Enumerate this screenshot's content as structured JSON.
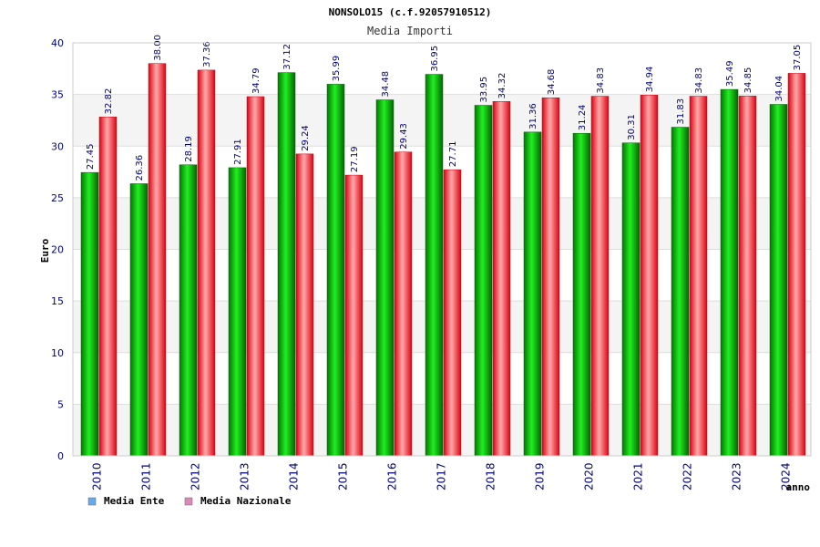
{
  "chart_data": {
    "type": "bar",
    "title": "NONSOLO15 (c.f.92057910512)",
    "subtitle": "Media Importi",
    "ylabel": "Euro",
    "xlabel": "anno",
    "ylim": [
      0,
      40
    ],
    "yticks": [
      0,
      5,
      10,
      15,
      20,
      25,
      30,
      35,
      40
    ],
    "grid": true,
    "legend_position": "bottom-left",
    "categories": [
      "2010",
      "2011",
      "2012",
      "2013",
      "2014",
      "2015",
      "2016",
      "2017",
      "2018",
      "2019",
      "2020",
      "2021",
      "2022",
      "2023",
      "2024"
    ],
    "series": [
      {
        "name": "Media Ente",
        "bar_color": "#00aa00",
        "legend_color": "#66aaee",
        "values": [
          27.45,
          26.36,
          28.19,
          27.91,
          37.12,
          35.99,
          34.48,
          36.95,
          33.95,
          31.36,
          31.24,
          30.31,
          31.83,
          35.49,
          34.04
        ],
        "labels": [
          "27.45",
          "26.36",
          "28.19",
          "27.91",
          "37.12",
          "35.99",
          "34.48",
          "36.95",
          "33.95",
          "31.36",
          "31.24",
          "30.31",
          "31.83",
          "35.49",
          "34.04"
        ]
      },
      {
        "name": "Media Nazionale",
        "bar_color": "#ee2233",
        "legend_color": "#dd88bb",
        "values": [
          32.82,
          38.0,
          37.36,
          34.79,
          29.24,
          27.19,
          29.43,
          27.71,
          34.32,
          34.68,
          34.83,
          34.94,
          34.83,
          34.85,
          37.05
        ],
        "labels": [
          "32.82",
          "38.00",
          "37.36",
          "34.79",
          "29.24",
          "27.19",
          "29.43",
          "27.71",
          "34.32",
          "34.68",
          "34.83",
          "34.94",
          "34.83",
          "34.85",
          "37.05"
        ]
      }
    ]
  }
}
